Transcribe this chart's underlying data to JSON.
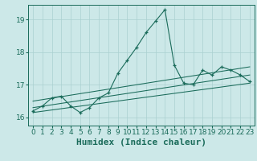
{
  "xlabel": "Humidex (Indice chaleur)",
  "bg_color": "#cce8e8",
  "line_color": "#1a6b5a",
  "xlim": [
    -0.5,
    23.5
  ],
  "ylim": [
    15.75,
    19.45
  ],
  "yticks": [
    16,
    17,
    18,
    19
  ],
  "xticks": [
    0,
    1,
    2,
    3,
    4,
    5,
    6,
    7,
    8,
    9,
    10,
    11,
    12,
    13,
    14,
    15,
    16,
    17,
    18,
    19,
    20,
    21,
    22,
    23
  ],
  "scatter_x": [
    0,
    1,
    2,
    3,
    4,
    5,
    6,
    7,
    8,
    9,
    10,
    11,
    12,
    13,
    14,
    15,
    16,
    17,
    18,
    19,
    20,
    21,
    22,
    23
  ],
  "scatter_y": [
    16.2,
    16.35,
    16.6,
    16.65,
    16.35,
    16.15,
    16.3,
    16.6,
    16.75,
    17.35,
    17.75,
    18.15,
    18.6,
    18.95,
    19.3,
    17.6,
    17.05,
    17.0,
    17.45,
    17.3,
    17.55,
    17.45,
    17.3,
    17.1
  ],
  "line1_x": [
    0,
    23
  ],
  "line1_y": [
    16.15,
    17.05
  ],
  "line2_x": [
    0,
    23
  ],
  "line2_y": [
    16.3,
    17.3
  ],
  "line3_x": [
    0,
    23
  ],
  "line3_y": [
    16.5,
    17.55
  ],
  "grid_color": "#aad0d0",
  "tick_fontsize": 6.5,
  "xlabel_fontsize": 8
}
